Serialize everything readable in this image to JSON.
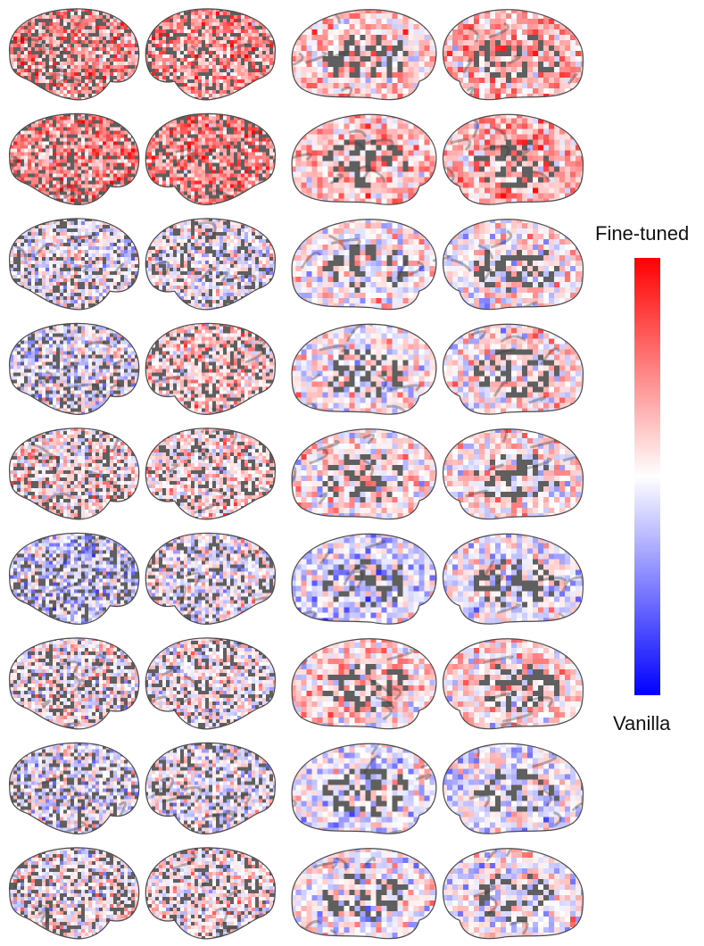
{
  "colorbar": {
    "top_label": "Fine-tuned",
    "bottom_label": "Vanilla",
    "top_color": "#ff0000",
    "middle_color": "#ffffff",
    "bottom_color": "#0000ff"
  },
  "grid": {
    "rows": 9,
    "views": [
      "lateral-left",
      "lateral-right",
      "medial-left",
      "medial-right"
    ]
  },
  "surface": {
    "base_color": "#5f5f5f",
    "positive_color": "#ff0000",
    "negative_color": "#0000ff",
    "rows": [
      {
        "bias": 0.3,
        "views": [
          0.4,
          0.4,
          0.2,
          0.3
        ]
      },
      {
        "bias": 0.35,
        "views": [
          0.45,
          0.45,
          0.25,
          0.3
        ]
      },
      {
        "bias": -0.05,
        "views": [
          0.0,
          0.0,
          0.05,
          0.05
        ]
      },
      {
        "bias": 0.05,
        "views": [
          -0.05,
          0.2,
          0.05,
          0.1
        ]
      },
      {
        "bias": 0.05,
        "views": [
          0.15,
          0.15,
          0.1,
          0.1
        ]
      },
      {
        "bias": -0.1,
        "views": [
          -0.15,
          0.0,
          -0.15,
          -0.05
        ]
      },
      {
        "bias": 0.05,
        "views": [
          0.05,
          0.05,
          0.15,
          0.15
        ]
      },
      {
        "bias": -0.05,
        "views": [
          -0.05,
          0.0,
          -0.05,
          -0.05
        ]
      },
      {
        "bias": 0.05,
        "views": [
          0.05,
          0.1,
          0.0,
          0.0
        ]
      }
    ]
  }
}
